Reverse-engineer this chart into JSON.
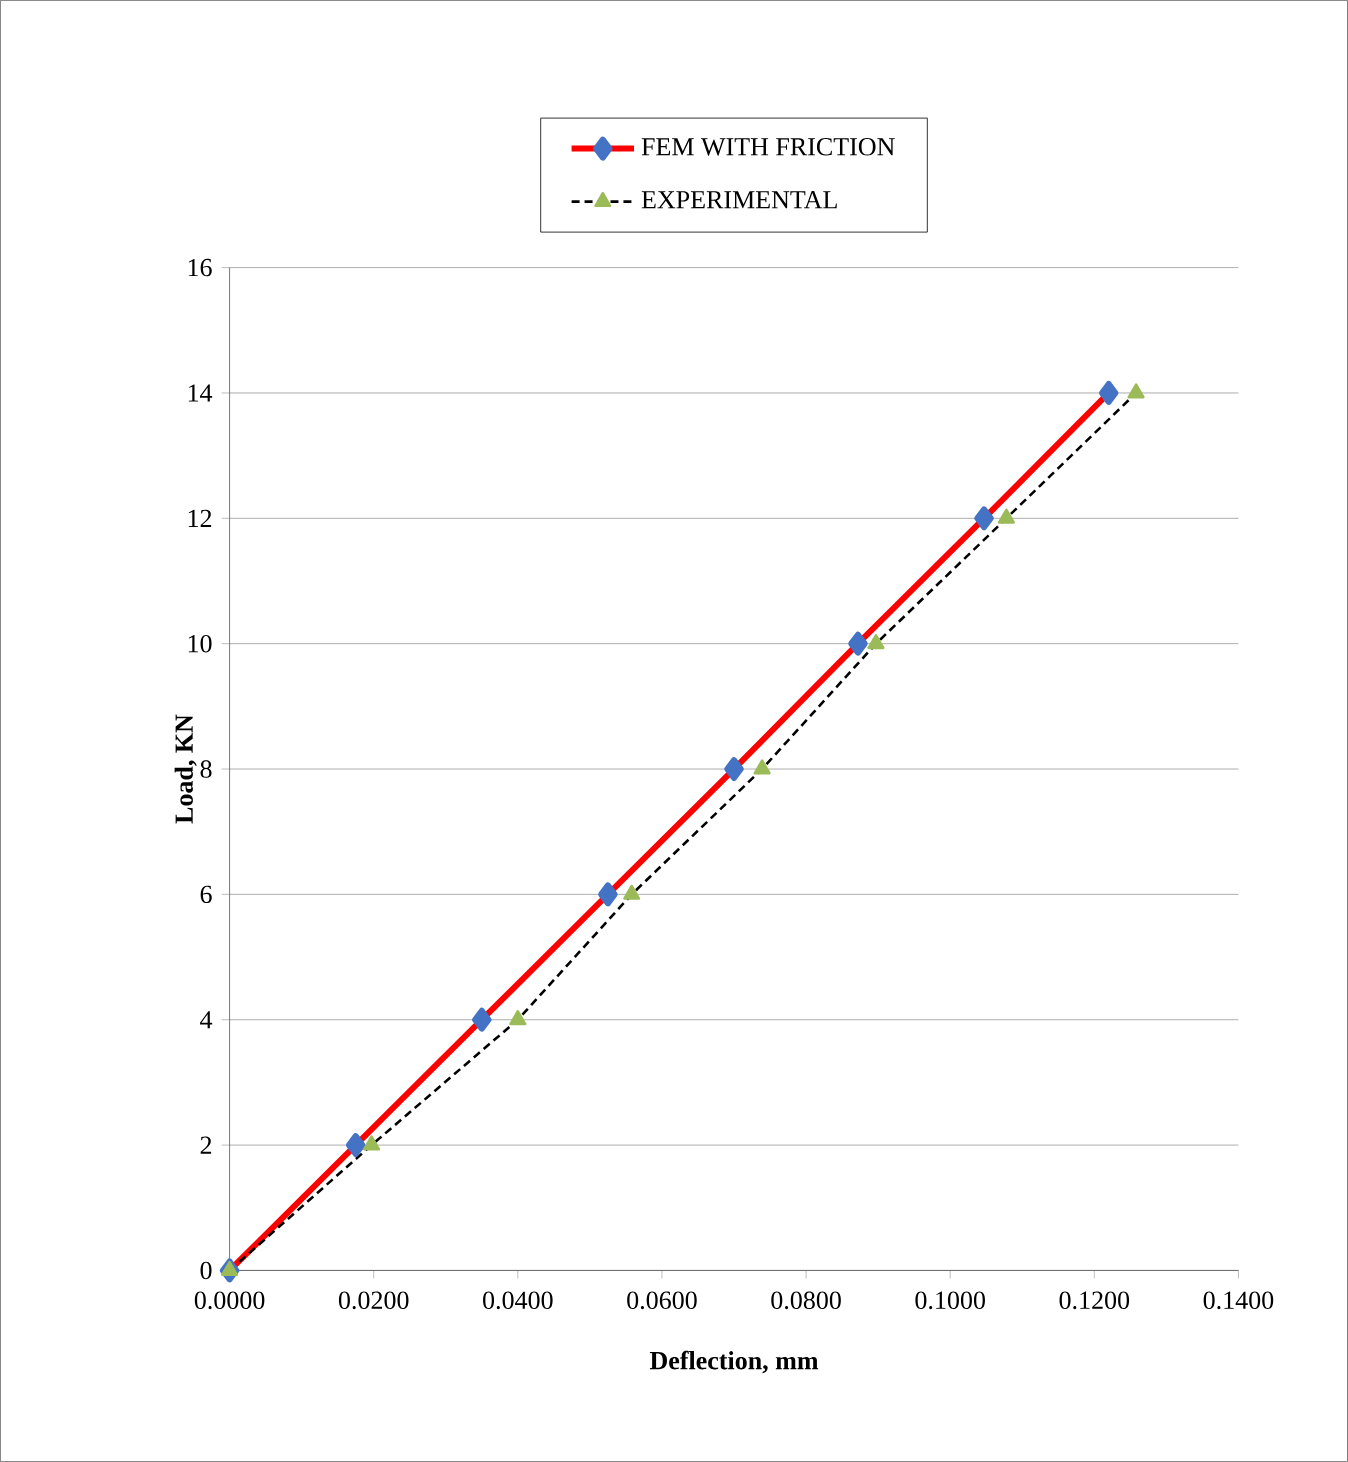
{
  "chart_data": {
    "type": "line",
    "xlabel": "Deflection, mm",
    "ylabel": "Load, KN",
    "series": [
      {
        "name": "FEM WITH FRICTION",
        "color": "#ff0000",
        "marker": "diamond",
        "line_style": "solid",
        "x": [
          0,
          0.0175,
          0.035,
          0.0525,
          0.07,
          0.0872,
          0.1047,
          0.122
        ],
        "values": [
          0,
          2,
          4,
          6,
          8,
          10,
          12,
          14
        ]
      },
      {
        "name": "EXPERIMENTAL",
        "color": "#000000",
        "marker": "triangle",
        "line_style": "dashed",
        "x": [
          0,
          0.0197,
          0.04,
          0.0558,
          0.0739,
          0.0897,
          0.1078,
          0.1258
        ],
        "values": [
          0,
          2,
          4,
          6,
          8,
          10,
          12,
          14
        ]
      }
    ],
    "xlim": [
      0,
      0.14
    ],
    "ylim": [
      0,
      16
    ],
    "xticks": [
      {
        "value": 0,
        "label": "0.0000"
      },
      {
        "value": 0.02,
        "label": "0.0200"
      },
      {
        "value": 0.04,
        "label": "0.0400"
      },
      {
        "value": 0.06,
        "label": "0.0600"
      },
      {
        "value": 0.08,
        "label": "0.0800"
      },
      {
        "value": 0.1,
        "label": "0.1000"
      },
      {
        "value": 0.12,
        "label": "0.1200"
      },
      {
        "value": 0.14,
        "label": "0.1400"
      }
    ],
    "yticks": [
      0,
      2,
      4,
      6,
      8,
      10,
      12,
      14,
      16
    ],
    "grid": "y",
    "legend": "top"
  }
}
